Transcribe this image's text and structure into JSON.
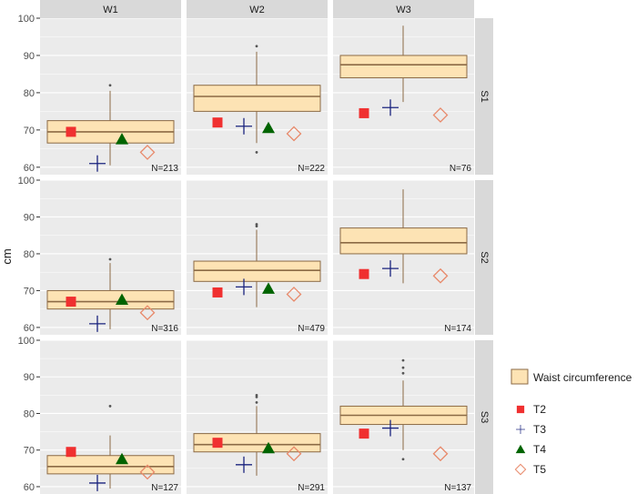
{
  "chart_data": {
    "type": "boxplot",
    "ylabel": "cm",
    "ylim": [
      58,
      100
    ],
    "yticks": [
      60,
      70,
      80,
      90,
      100
    ],
    "columns": [
      "W1",
      "W2",
      "W3"
    ],
    "rows": [
      "S1",
      "S2",
      "S3"
    ],
    "colors": {
      "box_fill": "#fde3b4",
      "box_line": "#8b6a45",
      "panel_bg": "#ebebeb",
      "strip_bg": "#d9d9d9",
      "grid": "#ffffff",
      "T2": "#f03030",
      "T3": "#1a237e",
      "T4": "#006400",
      "T5": "#e8896a"
    },
    "legend": {
      "box_label": "Waist circumference",
      "markers": [
        {
          "key": "T2",
          "label": "T2",
          "shape": "square"
        },
        {
          "key": "T3",
          "label": "T3",
          "shape": "plus"
        },
        {
          "key": "T4",
          "label": "T4",
          "shape": "triangle"
        },
        {
          "key": "T5",
          "label": "T5",
          "shape": "diamond"
        }
      ]
    },
    "panels": [
      {
        "row": "S1",
        "col": "W1",
        "n": "N=213",
        "box": {
          "q1": 66.5,
          "median": 69.5,
          "q3": 72.5,
          "lower": 60.5,
          "upper": 80.5
        },
        "outliers": [
          82
        ],
        "markers": {
          "T2": 69.5,
          "T3": 61,
          "T4": 67.5,
          "T5": 64
        }
      },
      {
        "row": "S1",
        "col": "W2",
        "n": "N=222",
        "box": {
          "q1": 75,
          "median": 79,
          "q3": 82,
          "lower": 66.5,
          "upper": 91
        },
        "outliers": [
          64,
          92.5
        ],
        "markers": {
          "T2": 72,
          "T3": 71,
          "T4": 70.5,
          "T5": 69
        }
      },
      {
        "row": "S1",
        "col": "W3",
        "n": "N=76",
        "box": {
          "q1": 84,
          "median": 87.5,
          "q3": 90,
          "lower": 77.5,
          "upper": 98
        },
        "outliers": [],
        "markers": {
          "T2": 74.5,
          "T3": 76,
          "T5": 74
        }
      },
      {
        "row": "S2",
        "col": "W1",
        "n": "N=316",
        "box": {
          "q1": 65,
          "median": 67,
          "q3": 70,
          "lower": 59.5,
          "upper": 77.5
        },
        "outliers": [
          78.5
        ],
        "markers": {
          "T2": 67,
          "T3": 61,
          "T4": 67.5,
          "T5": 64
        }
      },
      {
        "row": "S2",
        "col": "W2",
        "n": "N=479",
        "box": {
          "q1": 72.5,
          "median": 75.5,
          "q3": 78,
          "lower": 65.5,
          "upper": 86.5
        },
        "outliers": [
          87.5,
          88
        ],
        "markers": {
          "T2": 69.5,
          "T3": 71,
          "T4": 70.5,
          "T5": 69
        }
      },
      {
        "row": "S2",
        "col": "W3",
        "n": "N=174",
        "box": {
          "q1": 80,
          "median": 83,
          "q3": 87,
          "lower": 72,
          "upper": 97.5
        },
        "outliers": [],
        "markers": {
          "T2": 74.5,
          "T3": 76,
          "T5": 74
        }
      },
      {
        "row": "S3",
        "col": "W1",
        "n": "N=127",
        "box": {
          "q1": 63.5,
          "median": 65.5,
          "q3": 68.5,
          "lower": 59.5,
          "upper": 74
        },
        "outliers": [
          82
        ],
        "markers": {
          "T2": 69.5,
          "T3": 61,
          "T4": 67.5,
          "T5": 64
        }
      },
      {
        "row": "S3",
        "col": "W2",
        "n": "N=291",
        "box": {
          "q1": 69.5,
          "median": 71.5,
          "q3": 74.5,
          "lower": 63,
          "upper": 82
        },
        "outliers": [
          83,
          84.5,
          85
        ],
        "markers": {
          "T2": 72,
          "T3": 66,
          "T4": 70.5,
          "T5": 69
        }
      },
      {
        "row": "S3",
        "col": "W3",
        "n": "N=137",
        "box": {
          "q1": 77,
          "median": 79.5,
          "q3": 82,
          "lower": 70,
          "upper": 89
        },
        "outliers": [
          67.5,
          91,
          92.5,
          94.5
        ],
        "markers": {
          "T2": 74.5,
          "T3": 76,
          "T5": 69
        }
      }
    ]
  }
}
